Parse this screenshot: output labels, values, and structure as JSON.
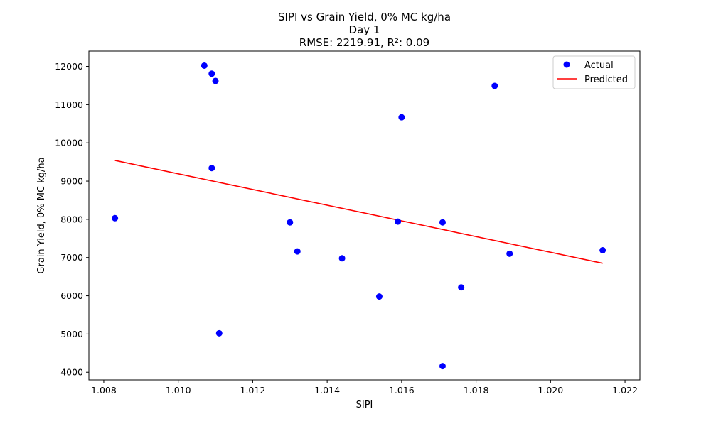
{
  "chart_data": {
    "type": "scatter",
    "title": [
      "SIPI vs Grain Yield, 0% MC kg/ha",
      "Day 1",
      "RMSE: 2219.91, R²: 0.09"
    ],
    "xlabel": "SIPI",
    "ylabel": "Grain Yield, 0% MC kg/ha",
    "xlim": [
      1.0076,
      1.0224
    ],
    "ylim": [
      3800,
      12400
    ],
    "xticks": [
      "1.008",
      "1.010",
      "1.012",
      "1.014",
      "1.016",
      "1.018",
      "1.020",
      "1.022"
    ],
    "yticks": [
      "4000",
      "5000",
      "6000",
      "7000",
      "8000",
      "9000",
      "10000",
      "11000",
      "12000"
    ],
    "grid": false,
    "legend_position": "top-right",
    "series": [
      {
        "name": "Actual",
        "kind": "scatter",
        "color": "#0000ff",
        "points": [
          {
            "x": 1.0083,
            "y": 8030
          },
          {
            "x": 1.0107,
            "y": 12020
          },
          {
            "x": 1.0109,
            "y": 11810
          },
          {
            "x": 1.011,
            "y": 11620
          },
          {
            "x": 1.0109,
            "y": 9340
          },
          {
            "x": 1.0111,
            "y": 5020
          },
          {
            "x": 1.013,
            "y": 7920
          },
          {
            "x": 1.0132,
            "y": 7160
          },
          {
            "x": 1.0144,
            "y": 6980
          },
          {
            "x": 1.0154,
            "y": 5980
          },
          {
            "x": 1.0159,
            "y": 7940
          },
          {
            "x": 1.016,
            "y": 10670
          },
          {
            "x": 1.0171,
            "y": 7920
          },
          {
            "x": 1.0171,
            "y": 4160
          },
          {
            "x": 1.0176,
            "y": 6220
          },
          {
            "x": 1.0185,
            "y": 11490
          },
          {
            "x": 1.0189,
            "y": 7100
          },
          {
            "x": 1.0214,
            "y": 7190
          }
        ]
      },
      {
        "name": "Predicted",
        "kind": "line",
        "color": "#ff0000",
        "points": [
          {
            "x": 1.0083,
            "y": 9540
          },
          {
            "x": 1.0214,
            "y": 6850
          }
        ]
      }
    ]
  }
}
